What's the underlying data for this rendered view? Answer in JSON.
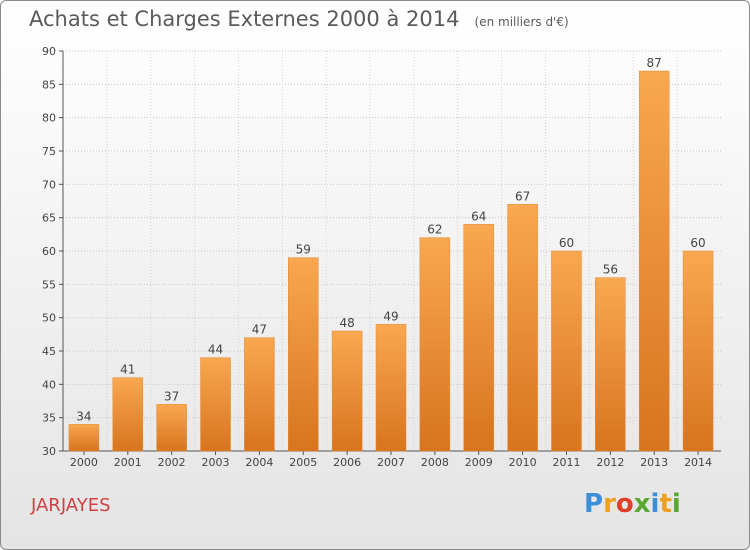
{
  "chart_data": {
    "type": "bar",
    "title": "Achats et Charges Externes 2000 à 2014",
    "subtitle": "(en milliers d'€)",
    "categories": [
      "2000",
      "2001",
      "2002",
      "2003",
      "2004",
      "2005",
      "2006",
      "2007",
      "2008",
      "2009",
      "2010",
      "2011",
      "2012",
      "2013",
      "2014"
    ],
    "values": [
      34,
      41,
      37,
      44,
      47,
      59,
      48,
      49,
      62,
      64,
      67,
      60,
      56,
      87,
      60
    ],
    "ylim": [
      30,
      90
    ],
    "yticks": [
      30,
      35,
      40,
      45,
      50,
      55,
      60,
      65,
      70,
      75,
      80,
      85,
      90
    ],
    "grid": true,
    "bar_color": "#f0963c"
  },
  "commune": "JARJAYES",
  "logo": {
    "letters": [
      "P",
      "r",
      "o",
      "x",
      "i",
      "t",
      "i"
    ],
    "colors": [
      "#3b8fd6",
      "#f0a020",
      "#e0402a",
      "#5aa830",
      "#3b8fd6",
      "#f0a020",
      "#5aa830"
    ]
  }
}
